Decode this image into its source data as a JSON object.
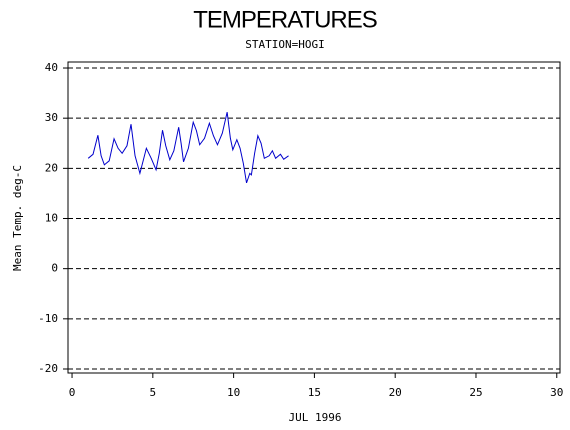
{
  "chart_data": {
    "type": "line",
    "title": "TEMPERATURES",
    "subtitle": "STATION=HOGI",
    "xlabel": "JUL 1996",
    "ylabel": "Mean Temp. deg-C",
    "x": [
      1.0,
      1.3,
      1.6,
      1.8,
      2.0,
      2.3,
      2.6,
      2.85,
      3.1,
      3.4,
      3.65,
      3.9,
      4.2,
      4.4,
      4.6,
      4.9,
      5.2,
      5.4,
      5.6,
      5.8,
      6.05,
      6.3,
      6.6,
      6.75,
      6.9,
      7.2,
      7.5,
      7.7,
      7.9,
      8.2,
      8.5,
      8.75,
      9.0,
      9.3,
      9.6,
      9.8,
      9.95,
      10.2,
      10.4,
      10.6,
      10.8,
      11.0,
      11.1,
      11.3,
      11.5,
      11.7,
      11.9,
      12.2,
      12.4,
      12.6,
      12.9,
      13.1,
      13.4
    ],
    "series": [
      {
        "name": "Mean Temp",
        "color": "#0000cc",
        "values": [
          22.0,
          22.8,
          26.6,
          22.5,
          20.7,
          21.5,
          25.9,
          24.0,
          23.0,
          24.5,
          28.8,
          22.5,
          19.0,
          21.5,
          24.0,
          22.0,
          19.7,
          23.0,
          27.6,
          24.5,
          21.7,
          23.5,
          28.2,
          25.0,
          21.3,
          24.0,
          29.2,
          27.5,
          24.7,
          26.0,
          29.0,
          26.5,
          24.7,
          27.0,
          31.2,
          26.0,
          23.7,
          25.7,
          24.0,
          21.0,
          17.1,
          19.0,
          18.7,
          23.0,
          26.5,
          25.0,
          22.0,
          22.5,
          23.5,
          22.0,
          22.8,
          21.8,
          22.5
        ]
      }
    ],
    "xlim": [
      -0.25,
      30.2
    ],
    "ylim": [
      -20.8,
      41.2
    ],
    "xticks": [
      0,
      5,
      10,
      15,
      20,
      25,
      30
    ],
    "yticks": [
      -20,
      -10,
      0,
      10,
      20,
      30,
      40
    ],
    "grid": true
  }
}
